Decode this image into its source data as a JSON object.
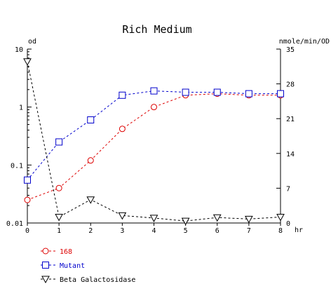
{
  "chart_data": {
    "type": "line",
    "title": "Rich Medium",
    "x_unit": "hr",
    "x_ticks": [
      "0",
      "1",
      "2",
      "3",
      "4",
      "5",
      "6",
      "7",
      "8"
    ],
    "xlim": [
      0,
      8
    ],
    "y_left": {
      "label": "od",
      "scale": "log",
      "lim": [
        0.01,
        10
      ],
      "ticks": [
        "10",
        "1",
        "0.1",
        "0.01"
      ]
    },
    "y_right": {
      "label": "nmole/min/OD",
      "scale": "linear",
      "lim": [
        0,
        35
      ],
      "ticks": [
        "35",
        "28",
        "21",
        "14",
        "7",
        "0"
      ]
    },
    "series": [
      {
        "name": "168",
        "axis": "left",
        "color": "#dd0000",
        "marker": "circle",
        "x": [
          0,
          1,
          2,
          3,
          4,
          5,
          6,
          7,
          8
        ],
        "y": [
          0.025,
          0.04,
          0.12,
          0.42,
          1.0,
          1.6,
          1.7,
          1.6,
          1.6
        ]
      },
      {
        "name": "Mutant",
        "axis": "left",
        "color": "#0000cc",
        "marker": "square",
        "x": [
          0,
          1,
          2,
          3,
          4,
          5,
          6,
          7,
          8
        ],
        "y": [
          0.055,
          0.25,
          0.6,
          1.6,
          1.9,
          1.8,
          1.8,
          1.7,
          1.7
        ]
      },
      {
        "name": "Beta Galactosidase",
        "axis": "right",
        "color": "#000000",
        "marker": "triangle-down",
        "x": [
          0,
          1,
          2,
          3,
          4,
          5,
          6,
          7,
          8
        ],
        "y": [
          32.5,
          1.2,
          4.7,
          1.5,
          1.0,
          0.4,
          1.1,
          0.8,
          1.2
        ]
      }
    ],
    "grid": false,
    "legend_position": "bottom-left"
  }
}
